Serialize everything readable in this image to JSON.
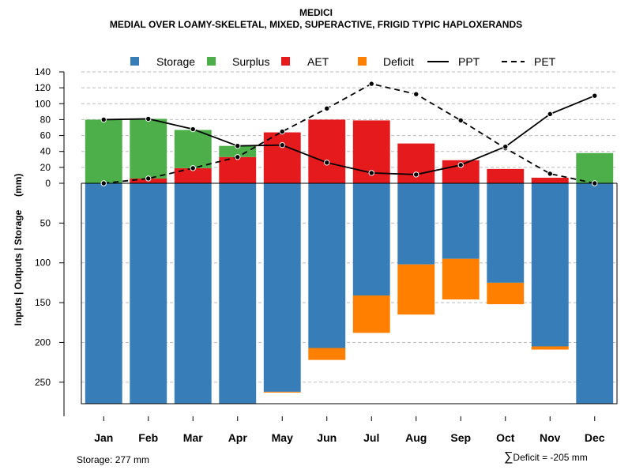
{
  "header": {
    "title": "MEDICI",
    "subtitle": "MEDIAL OVER LOAMY-SKELETAL, MIXED, SUPERACTIVE, FRIGID TYPIC HAPLOXERANDS"
  },
  "footer": {
    "storage_text": "Storage: 277 mm",
    "sigma": "∑",
    "deficit_text": "Deficit = -205 mm"
  },
  "colors": {
    "storage": "#377eb8",
    "surplus": "#4daf4a",
    "aet": "#e41a1c",
    "deficit": "#ff7f00"
  },
  "chart_data": {
    "type": "bar",
    "title": "MEDICI",
    "subtitle": "MEDIAL OVER LOAMY-SKELETAL, MIXED, SUPERACTIVE, FRIGID TYPIC HAPLOXERANDS",
    "ylabel": "Inputs | Outputs | Storage     (mm)",
    "categories": [
      "Jan",
      "Feb",
      "Mar",
      "Apr",
      "May",
      "Jun",
      "Jul",
      "Aug",
      "Sep",
      "Oct",
      "Nov",
      "Dec"
    ],
    "upper_ticks": [
      0,
      20,
      40,
      60,
      80,
      100,
      120,
      140
    ],
    "lower_ticks": [
      50,
      100,
      150,
      200,
      250
    ],
    "upper_ylim": [
      0,
      140
    ],
    "lower_ylim": [
      0,
      277
    ],
    "legend": [
      "Storage",
      "Surplus",
      "AET",
      "Deficit",
      "PPT",
      "PET"
    ],
    "legend_position": "top",
    "grid": true,
    "series": [
      {
        "name": "Surplus",
        "values": [
          80,
          75,
          48,
          14,
          0,
          0,
          0,
          0,
          0,
          0,
          0,
          38
        ]
      },
      {
        "name": "AET",
        "values": [
          0,
          6,
          19,
          33,
          64,
          80,
          79,
          50,
          29,
          18,
          7,
          0
        ]
      },
      {
        "name": "Storage",
        "values": [
          277,
          277,
          277,
          277,
          262,
          207,
          141,
          102,
          95,
          125,
          205,
          277
        ]
      },
      {
        "name": "Deficit",
        "values": [
          0,
          0,
          0,
          0,
          1,
          15,
          47,
          63,
          51,
          27,
          4,
          0
        ]
      },
      {
        "name": "PPT",
        "values": [
          80,
          81,
          68,
          47,
          48,
          26,
          13,
          11,
          23,
          46,
          87,
          110
        ]
      },
      {
        "name": "PET",
        "values": [
          0,
          6,
          19,
          33,
          65,
          94,
          125,
          112,
          79,
          44,
          12,
          0
        ]
      }
    ]
  }
}
